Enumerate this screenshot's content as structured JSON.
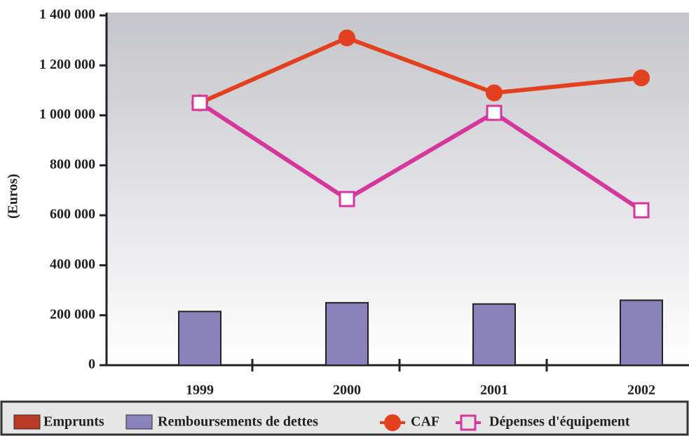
{
  "chart_data": {
    "type": "bar",
    "y_label": "(Euros)",
    "categories": [
      "1999",
      "2000",
      "2001",
      "2002"
    ],
    "ylim": [
      0,
      1400000
    ],
    "yticks": [
      0,
      {
        "value": 200000,
        "label": "200 000"
      },
      {
        "value": 400000,
        "label": "400 000"
      },
      {
        "value": 600000,
        "label": "600 000"
      },
      {
        "value": 800000,
        "label": "800 000"
      },
      {
        "value": 1000000,
        "label": "1 000 000"
      },
      {
        "value": 1200000,
        "label": "1 200 000"
      },
      {
        "value": 1400000,
        "label": "1 400 000"
      }
    ],
    "series": [
      {
        "name": "Emprunts",
        "type": "bar",
        "color": "#b83a24",
        "values": [
          null,
          null,
          null,
          null
        ]
      },
      {
        "name": "Remboursements de dettes",
        "type": "bar",
        "color": "#8a83bb",
        "values": [
          215000,
          250000,
          245000,
          260000
        ]
      },
      {
        "name": "CAF",
        "type": "line",
        "marker": "circle",
        "color": "#e2401f",
        "values": [
          1050000,
          1310000,
          1090000,
          1150000
        ]
      },
      {
        "name": "Dépenses d'équipement",
        "type": "line",
        "marker": "square",
        "color": "#d6379c",
        "values": [
          1050000,
          665000,
          1010000,
          620000
        ]
      }
    ]
  }
}
